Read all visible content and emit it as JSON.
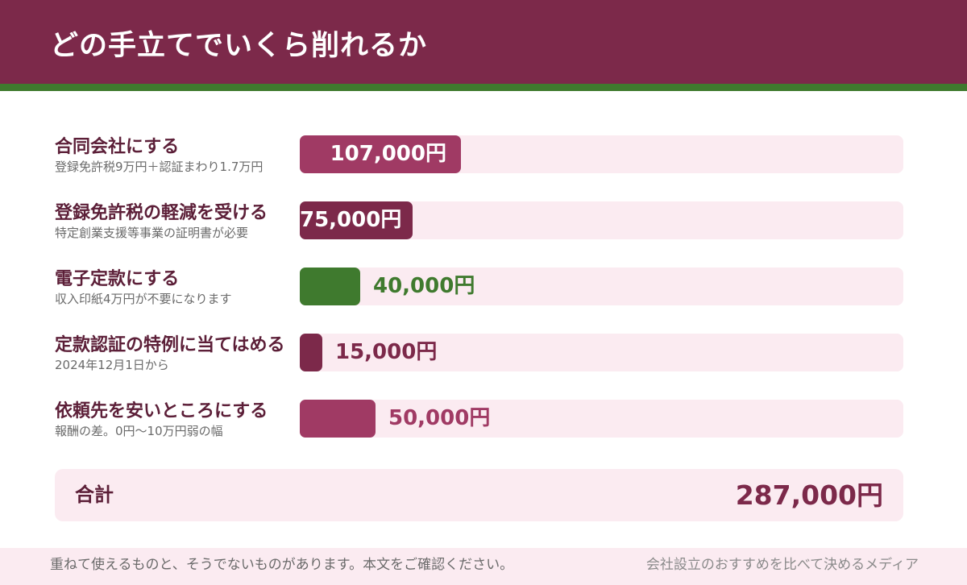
{
  "header": {
    "title": "どの手立てでいくら削れるか",
    "bg_color": "#7c294a",
    "stripe_color": "#3f7a2e"
  },
  "chart_data": {
    "type": "bar",
    "orientation": "horizontal",
    "xlim": [
      0,
      400000
    ],
    "items": [
      {
        "label": "合同会社にする",
        "sublabel": "登録免許税9万円＋認証まわり1.7万円",
        "value": 107000,
        "value_label": "107,000円",
        "color": "#a03a64",
        "label_inside": true
      },
      {
        "label": "登録免許税の軽減を受ける",
        "sublabel": "特定創業支援等事業の証明書が必要",
        "value": 75000,
        "value_label": "75,000円",
        "color": "#7c294a",
        "label_inside": true
      },
      {
        "label": "電子定款にする",
        "sublabel": "収入印紙4万円が不要になります",
        "value": 40000,
        "value_label": "40,000円",
        "color": "#3f7a2e",
        "label_inside": false,
        "value_color": "#3f7a2e"
      },
      {
        "label": "定款認証の特例に当てはめる",
        "sublabel": "2024年12月1日から",
        "value": 15000,
        "value_label": "15,000円",
        "color": "#7c294a",
        "label_inside": false,
        "value_color": "#7c294a"
      },
      {
        "label": "依頼先を安いところにする",
        "sublabel": "報酬の差。0円〜10万円弱の幅",
        "value": 50000,
        "value_label": "50,000円",
        "color": "#a03a64",
        "label_inside": false,
        "value_color": "#a03a64"
      }
    ]
  },
  "total": {
    "label": "合計",
    "value": "287,000円"
  },
  "footer": {
    "note": "重ねて使えるものと、そうでないものがあります。本文をご確認ください。",
    "brand": "会社設立のおすすめを比べて決めるメディア"
  }
}
